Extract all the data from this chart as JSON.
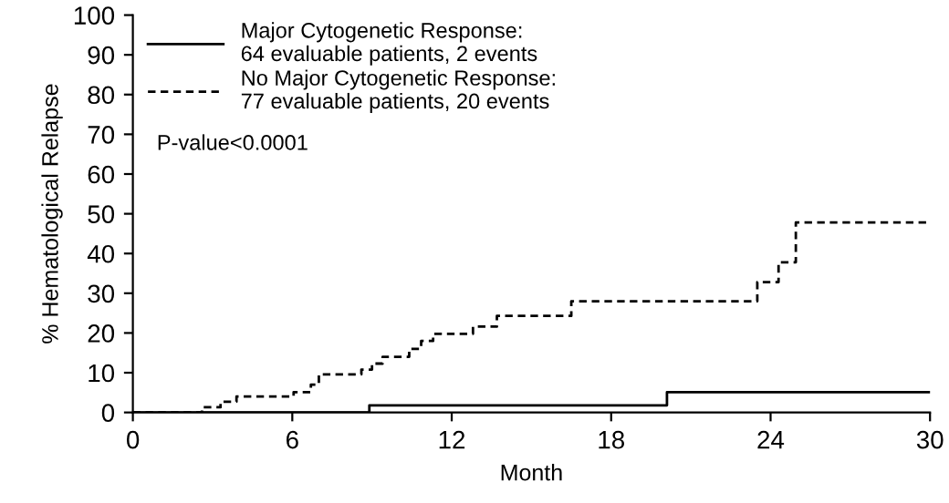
{
  "chart_data": {
    "type": "step",
    "xlabel": "Month",
    "ylabel": "% Hematological Relapse",
    "series": [
      {
        "name": "Major Cytogenetic Response:\n64 evaluable patients, 2 events",
        "color": "#000000",
        "line_style": "solid",
        "x": [
          0,
          8.9,
          20.1,
          30
        ],
        "values": [
          0,
          1.8,
          5.1,
          5.1
        ]
      },
      {
        "name": "No Major Cytogenetic Response:\n77 evaluable patients, 20 events",
        "color": "#000000",
        "line_style": "dashed",
        "x": [
          0,
          2.6,
          3.3,
          3.9,
          6.05,
          6.7,
          7.0,
          8.6,
          9.0,
          9.4,
          10.4,
          10.85,
          11.3,
          12.8,
          13.7,
          16.5,
          23.5,
          24.3,
          24.95,
          30
        ],
        "values": [
          0,
          1.3,
          2.7,
          4.0,
          5.1,
          7.0,
          9.6,
          10.8,
          12.3,
          14.0,
          16.0,
          18.0,
          19.8,
          21.6,
          24.3,
          28.0,
          32.8,
          37.8,
          47.8,
          47.8
        ]
      }
    ],
    "annotations": [
      "P-value<0.0001"
    ],
    "xlim": [
      0,
      30
    ],
    "xticks": [
      0,
      6,
      12,
      18,
      24,
      30
    ],
    "ylim": [
      0,
      100
    ],
    "yticks": [
      0,
      10,
      20,
      30,
      40,
      50,
      60,
      70,
      80,
      90,
      100
    ],
    "legend": "top left",
    "grid": false
  }
}
